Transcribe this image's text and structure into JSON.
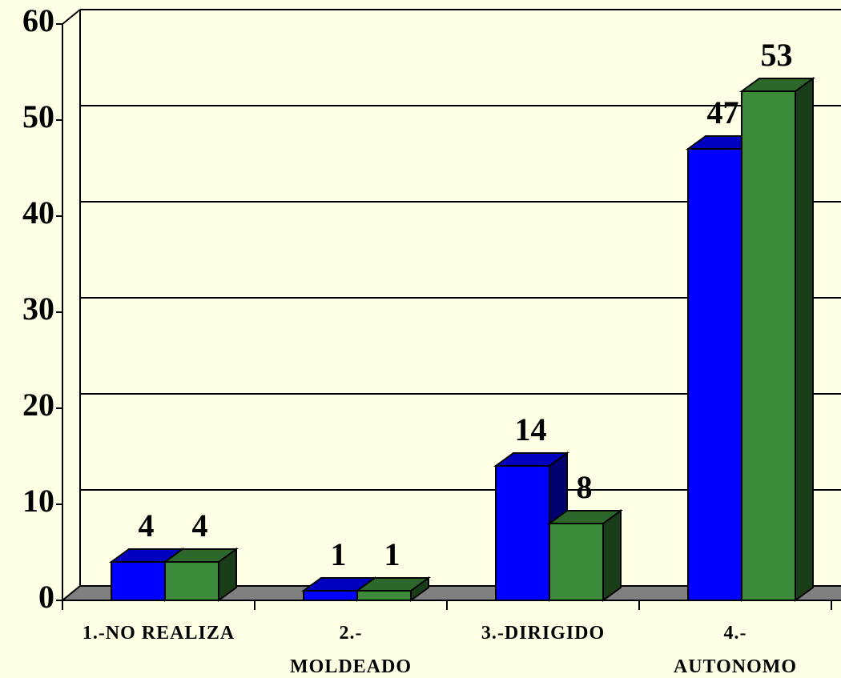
{
  "chart_data": {
    "type": "bar3d",
    "categories": [
      "1.-NO REALIZA",
      "2.-\nMOLDEADO",
      "3.-DIRIGIDO",
      "4.-\nAUTONOMO"
    ],
    "series": [
      {
        "color": "#0000FF",
        "values": [
          4,
          1,
          14,
          47
        ]
      },
      {
        "color": "#3A8A3A",
        "values": [
          4,
          1,
          8,
          53
        ]
      }
    ],
    "ylim": [
      0,
      60
    ],
    "yticks": [
      0,
      10,
      20,
      30,
      40,
      50,
      60
    ],
    "grid": true
  }
}
